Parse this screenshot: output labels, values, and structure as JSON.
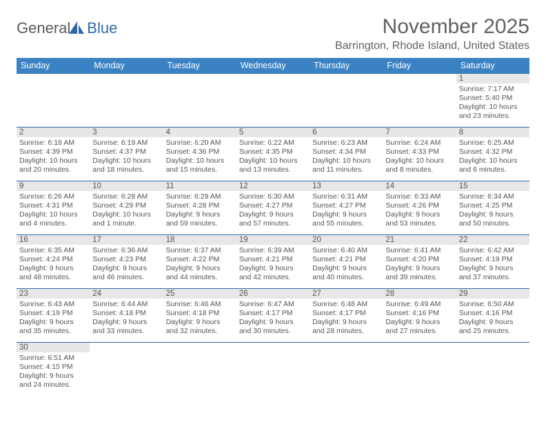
{
  "logo": {
    "text1": "General",
    "text2": "Blue"
  },
  "title": "November 2025",
  "location": "Barrington, Rhode Island, United States",
  "colors": {
    "header_bg": "#3b82c4",
    "header_text": "#ffffff",
    "row_border": "#2f6aa8",
    "daynum_bg": "#e7e7e7",
    "body_text": "#555555",
    "title_text": "#606060"
  },
  "day_headers": [
    "Sunday",
    "Monday",
    "Tuesday",
    "Wednesday",
    "Thursday",
    "Friday",
    "Saturday"
  ],
  "weeks": [
    [
      null,
      null,
      null,
      null,
      null,
      null,
      {
        "n": "1",
        "sr": "7:17 AM",
        "ss": "5:40 PM",
        "dl": "10 hours and 23 minutes."
      }
    ],
    [
      {
        "n": "2",
        "sr": "6:18 AM",
        "ss": "4:39 PM",
        "dl": "10 hours and 20 minutes."
      },
      {
        "n": "3",
        "sr": "6:19 AM",
        "ss": "4:37 PM",
        "dl": "10 hours and 18 minutes."
      },
      {
        "n": "4",
        "sr": "6:20 AM",
        "ss": "4:36 PM",
        "dl": "10 hours and 15 minutes."
      },
      {
        "n": "5",
        "sr": "6:22 AM",
        "ss": "4:35 PM",
        "dl": "10 hours and 13 minutes."
      },
      {
        "n": "6",
        "sr": "6:23 AM",
        "ss": "4:34 PM",
        "dl": "10 hours and 11 minutes."
      },
      {
        "n": "7",
        "sr": "6:24 AM",
        "ss": "4:33 PM",
        "dl": "10 hours and 8 minutes."
      },
      {
        "n": "8",
        "sr": "6:25 AM",
        "ss": "4:32 PM",
        "dl": "10 hours and 6 minutes."
      }
    ],
    [
      {
        "n": "9",
        "sr": "6:26 AM",
        "ss": "4:31 PM",
        "dl": "10 hours and 4 minutes."
      },
      {
        "n": "10",
        "sr": "6:28 AM",
        "ss": "4:29 PM",
        "dl": "10 hours and 1 minute."
      },
      {
        "n": "11",
        "sr": "6:29 AM",
        "ss": "4:28 PM",
        "dl": "9 hours and 59 minutes."
      },
      {
        "n": "12",
        "sr": "6:30 AM",
        "ss": "4:27 PM",
        "dl": "9 hours and 57 minutes."
      },
      {
        "n": "13",
        "sr": "6:31 AM",
        "ss": "4:27 PM",
        "dl": "9 hours and 55 minutes."
      },
      {
        "n": "14",
        "sr": "6:33 AM",
        "ss": "4:26 PM",
        "dl": "9 hours and 53 minutes."
      },
      {
        "n": "15",
        "sr": "6:34 AM",
        "ss": "4:25 PM",
        "dl": "9 hours and 50 minutes."
      }
    ],
    [
      {
        "n": "16",
        "sr": "6:35 AM",
        "ss": "4:24 PM",
        "dl": "9 hours and 48 minutes."
      },
      {
        "n": "17",
        "sr": "6:36 AM",
        "ss": "4:23 PM",
        "dl": "9 hours and 46 minutes."
      },
      {
        "n": "18",
        "sr": "6:37 AM",
        "ss": "4:22 PM",
        "dl": "9 hours and 44 minutes."
      },
      {
        "n": "19",
        "sr": "6:39 AM",
        "ss": "4:21 PM",
        "dl": "9 hours and 42 minutes."
      },
      {
        "n": "20",
        "sr": "6:40 AM",
        "ss": "4:21 PM",
        "dl": "9 hours and 40 minutes."
      },
      {
        "n": "21",
        "sr": "6:41 AM",
        "ss": "4:20 PM",
        "dl": "9 hours and 39 minutes."
      },
      {
        "n": "22",
        "sr": "6:42 AM",
        "ss": "4:19 PM",
        "dl": "9 hours and 37 minutes."
      }
    ],
    [
      {
        "n": "23",
        "sr": "6:43 AM",
        "ss": "4:19 PM",
        "dl": "9 hours and 35 minutes."
      },
      {
        "n": "24",
        "sr": "6:44 AM",
        "ss": "4:18 PM",
        "dl": "9 hours and 33 minutes."
      },
      {
        "n": "25",
        "sr": "6:46 AM",
        "ss": "4:18 PM",
        "dl": "9 hours and 32 minutes."
      },
      {
        "n": "26",
        "sr": "6:47 AM",
        "ss": "4:17 PM",
        "dl": "9 hours and 30 minutes."
      },
      {
        "n": "27",
        "sr": "6:48 AM",
        "ss": "4:17 PM",
        "dl": "9 hours and 28 minutes."
      },
      {
        "n": "28",
        "sr": "6:49 AM",
        "ss": "4:16 PM",
        "dl": "9 hours and 27 minutes."
      },
      {
        "n": "29",
        "sr": "6:50 AM",
        "ss": "4:16 PM",
        "dl": "9 hours and 25 minutes."
      }
    ],
    [
      {
        "n": "30",
        "sr": "6:51 AM",
        "ss": "4:15 PM",
        "dl": "9 hours and 24 minutes."
      },
      null,
      null,
      null,
      null,
      null,
      null
    ]
  ],
  "labels": {
    "sunrise_prefix": "Sunrise: ",
    "sunset_prefix": "Sunset: ",
    "daylight_prefix": "Daylight: "
  }
}
